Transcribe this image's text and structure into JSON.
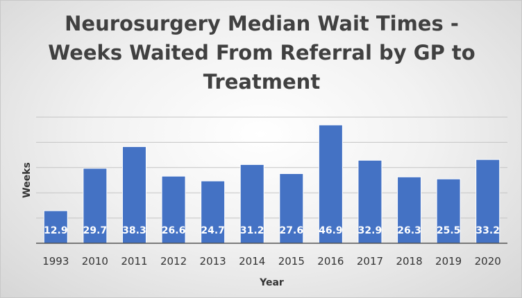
{
  "chart_data": {
    "type": "bar",
    "title_lines": [
      "Neurosurgery Median Wait Times -",
      "Weeks Waited From Referral by GP to",
      "Treatment"
    ],
    "xlabel": "Year",
    "ylabel": "Weeks",
    "categories": [
      "1993",
      "2010",
      "2011",
      "2012",
      "2013",
      "2014",
      "2015",
      "2016",
      "2017",
      "2018",
      "2019",
      "2020"
    ],
    "values": [
      12.9,
      29.7,
      38.3,
      26.6,
      24.7,
      31.2,
      27.6,
      46.9,
      32.9,
      26.3,
      25.5,
      33.2
    ],
    "ylim": [
      0,
      50
    ],
    "y_gridline_step": 10,
    "y_tick_labels_shown": false,
    "grid": true,
    "legend": "none",
    "data_labels": "inside-base",
    "bar_color": "#4472C4",
    "bar_edge_color": "#ffffff"
  }
}
